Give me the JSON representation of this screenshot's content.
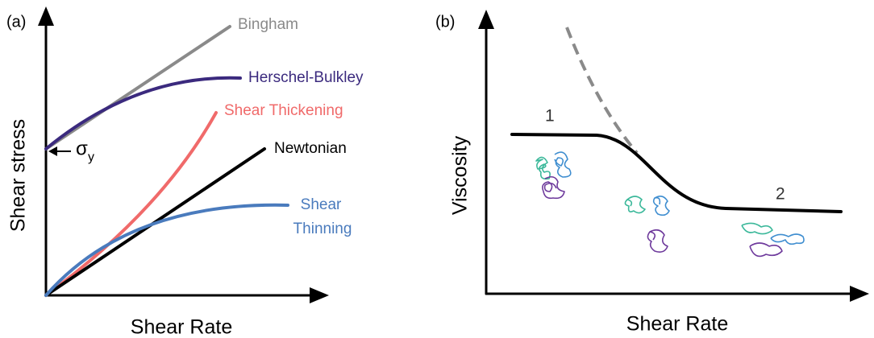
{
  "panel_a": {
    "label": "(a)",
    "y_label": "Shear stress",
    "x_label": "Shear Rate",
    "curves": {
      "bingham": "Bingham",
      "herschel_bulkley": "Herschel-Bulkley",
      "shear_thickening": "Shear Thickening",
      "newtonian": "Newtonian",
      "shear_thinning": [
        "Shear",
        "Thinning"
      ]
    },
    "yield_stress": {
      "symbol": "σ",
      "subscript": "y"
    }
  },
  "panel_b": {
    "label": "(b)",
    "y_label": "Viscosity",
    "x_label": "Shear Rate",
    "regions": [
      "1",
      "2"
    ]
  }
}
